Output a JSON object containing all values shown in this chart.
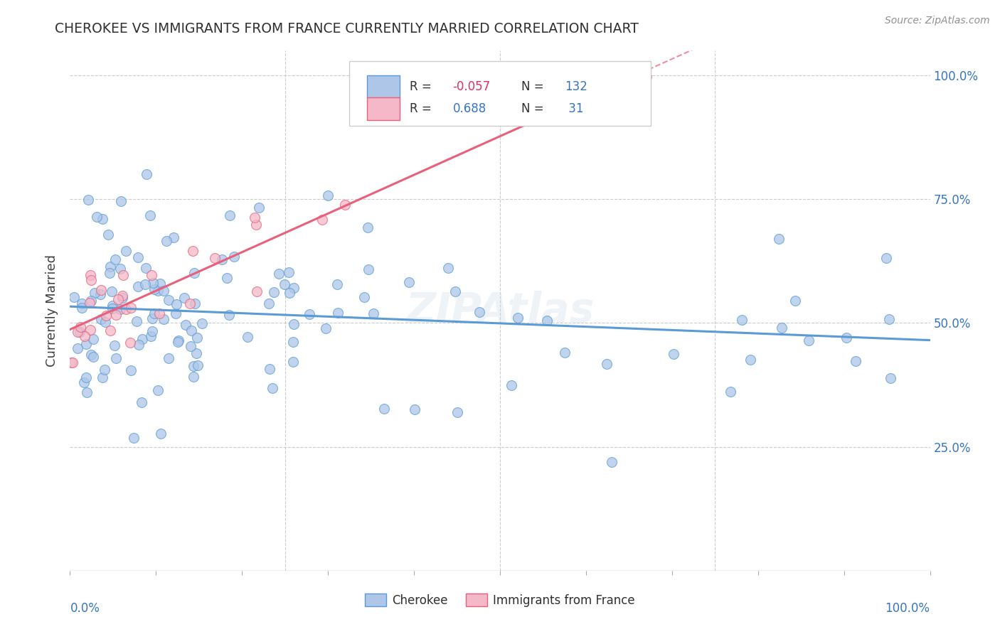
{
  "title": "CHEROKEE VS IMMIGRANTS FROM FRANCE CURRENTLY MARRIED CORRELATION CHART",
  "source": "Source: ZipAtlas.com",
  "ylabel": "Currently Married",
  "xlim": [
    0.0,
    1.0
  ],
  "ylim": [
    0.0,
    1.05
  ],
  "yticks": [
    0.0,
    0.25,
    0.5,
    0.75,
    1.0
  ],
  "right_ytick_labels": [
    "",
    "25.0%",
    "50.0%",
    "75.0%",
    "100.0%"
  ],
  "blue_color": "#5b9bd5",
  "pink_color": "#e8607a",
  "blue_scatter": "#aec6e8",
  "pink_scatter": "#f4b8c8",
  "grid_color": "#cccccc",
  "background": "#ffffff",
  "title_color": "#303030",
  "source_color": "#909090",
  "R_blue": -0.057,
  "N_blue": 132,
  "R_pink": 0.688,
  "N_pink": 31,
  "seed_blue": 17,
  "seed_pink": 88
}
